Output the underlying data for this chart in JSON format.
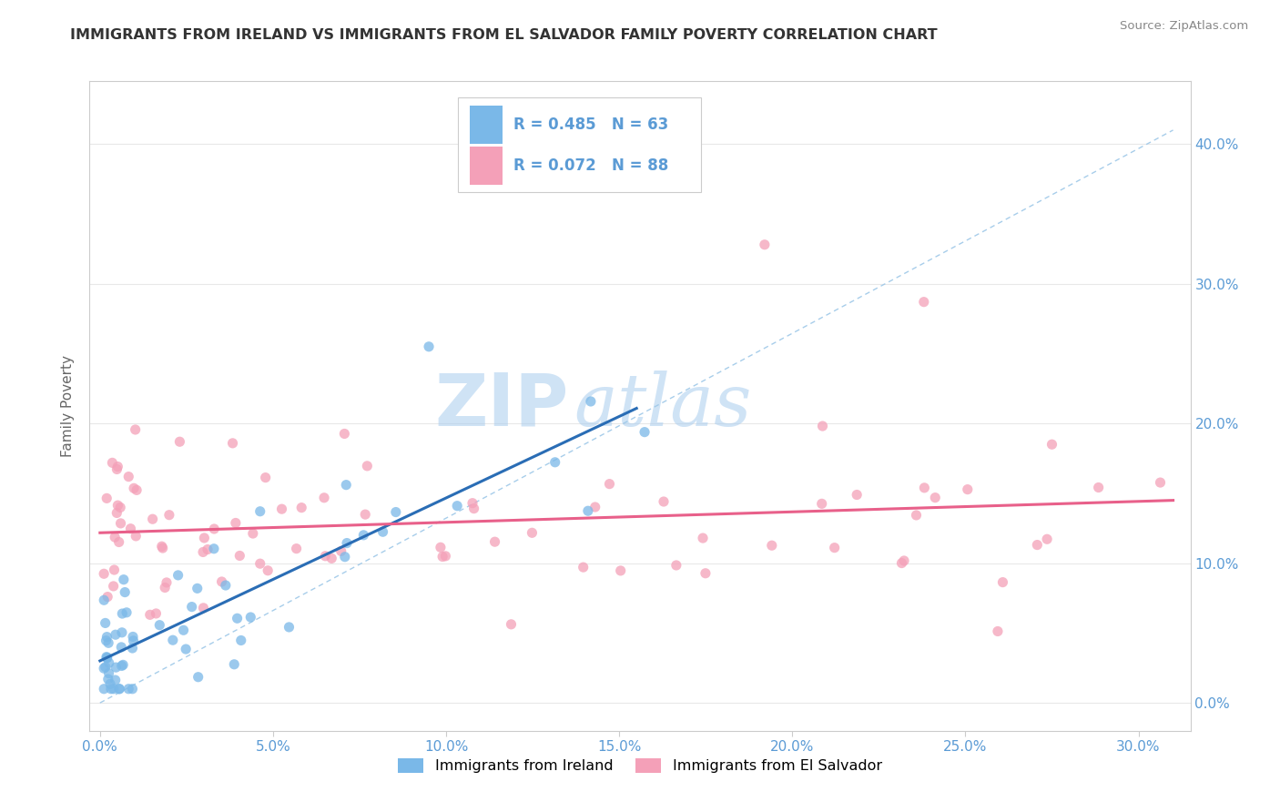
{
  "title": "IMMIGRANTS FROM IRELAND VS IMMIGRANTS FROM EL SALVADOR FAMILY POVERTY CORRELATION CHART",
  "source": "Source: ZipAtlas.com",
  "ylabel": "Family Poverty",
  "xlim": [
    -0.003,
    0.315
  ],
  "ylim": [
    -0.02,
    0.445
  ],
  "x_ticks": [
    0.0,
    0.05,
    0.1,
    0.15,
    0.2,
    0.25,
    0.3
  ],
  "x_tick_labels": [
    "0.0%",
    "5.0%",
    "10.0%",
    "15.0%",
    "20.0%",
    "25.0%",
    "30.0%"
  ],
  "y_ticks": [
    0.0,
    0.1,
    0.2,
    0.3,
    0.4
  ],
  "y_tick_labels": [
    "0.0%",
    "10.0%",
    "20.0%",
    "30.0%",
    "40.0%"
  ],
  "ireland_color": "#7ab8e8",
  "el_salvador_color": "#f4a0b8",
  "ireland_line_color": "#2a6db5",
  "el_salvador_line_color": "#e8608a",
  "diagonal_color": "#9ec8e8",
  "ireland_R": 0.485,
  "ireland_N": 63,
  "el_salvador_R": 0.072,
  "el_salvador_N": 88,
  "legend_label_ireland": "Immigrants from Ireland",
  "legend_label_el_salvador": "Immigrants from El Salvador",
  "watermark_zip": "ZIP",
  "watermark_atlas": "atlas",
  "tick_color": "#5b9bd5",
  "title_color": "#333333",
  "source_color": "#888888",
  "ylabel_color": "#666666",
  "grid_color": "#e8e8e8",
  "spine_color": "#cccccc"
}
